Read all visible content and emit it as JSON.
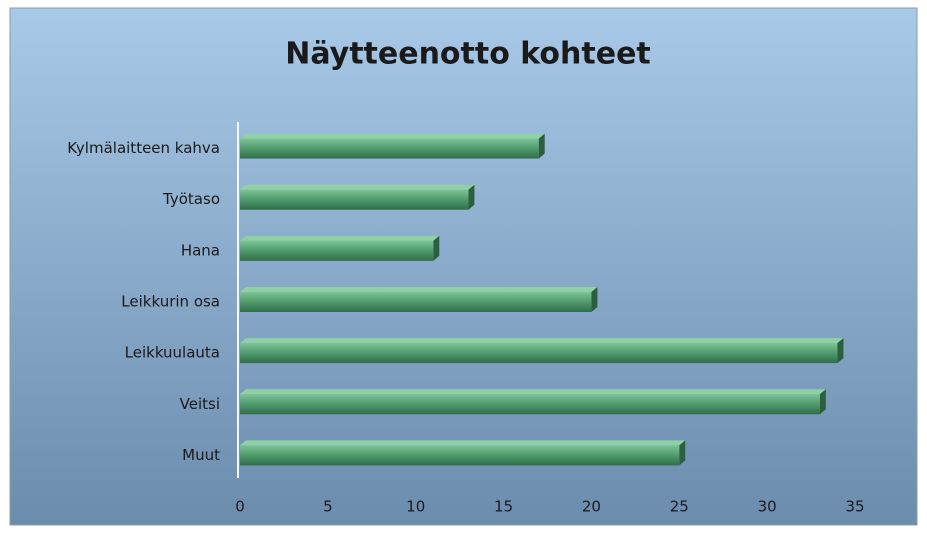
{
  "chart_data": {
    "type": "bar",
    "orientation": "horizontal",
    "title": "Näytteenotto kohteet",
    "categories": [
      "Kylmälaitteen kahva",
      "Työtaso",
      "Hana",
      "Leikkurin osa",
      "Leikkuulauta",
      "Veitsi",
      "Muut"
    ],
    "values": [
      17,
      13,
      11,
      20,
      34,
      33,
      25
    ],
    "color": "#4f9a6c",
    "xlim": [
      0,
      35
    ],
    "xticks": [
      0,
      5,
      10,
      15,
      20,
      25,
      30,
      35
    ],
    "grid": false
  }
}
